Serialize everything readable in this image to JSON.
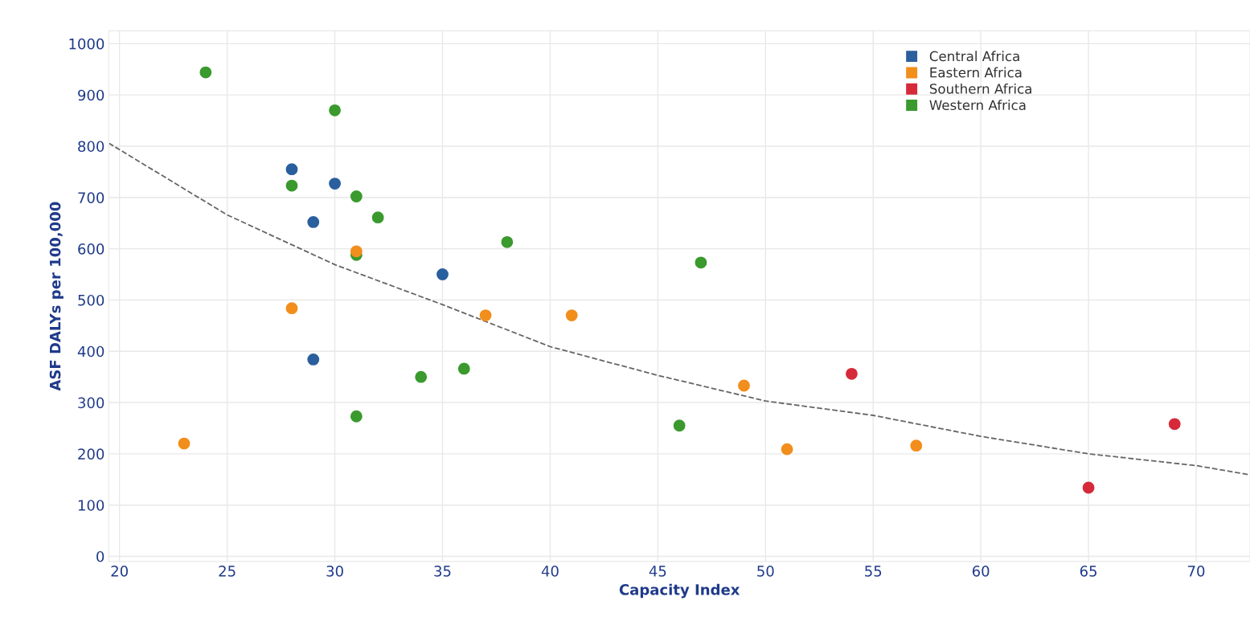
{
  "chart_data": {
    "type": "scatter",
    "xlabel": "Capacity Index",
    "ylabel": "ASF DALYs per 100,000",
    "xlim": [
      19.5,
      72.5
    ],
    "ylim": [
      -10,
      1025
    ],
    "xticks": [
      20,
      25,
      30,
      35,
      40,
      45,
      50,
      55,
      60,
      65,
      70
    ],
    "yticks": [
      0,
      100,
      200,
      300,
      400,
      500,
      600,
      700,
      800,
      900,
      1000
    ],
    "grid": true,
    "legend": "top right",
    "marker": "circle",
    "series": [
      {
        "name": "Central Africa",
        "color": "#2a5f9e",
        "x": [
          28,
          30,
          29,
          35,
          29
        ],
        "values": [
          755,
          727,
          652,
          550,
          384
        ]
      },
      {
        "name": "Eastern Africa",
        "color": "#f28e1c",
        "x": [
          23,
          28,
          31,
          37,
          41,
          49,
          51,
          57
        ],
        "values": [
          220,
          484,
          595,
          470,
          470,
          333,
          209,
          216
        ]
      },
      {
        "name": "Southern Africa",
        "color": "#d62a3a",
        "x": [
          54,
          65,
          69
        ],
        "values": [
          356,
          134,
          258
        ]
      },
      {
        "name": "Western Africa",
        "color": "#3a9a2e",
        "x": [
          24,
          30,
          28,
          31,
          32,
          31,
          38,
          47,
          34,
          36,
          31,
          46
        ],
        "values": [
          944,
          870,
          723,
          702,
          661,
          588,
          613,
          573,
          350,
          366,
          273,
          255
        ]
      },
      {
        "type": "line",
        "color": "#666666",
        "line_style": "dashed",
        "marker": "none",
        "x": [
          19.5,
          25,
          30,
          35,
          40,
          45,
          50,
          55,
          60,
          65,
          70,
          72.5
        ],
        "values": [
          806,
          666,
          569,
          491,
          409,
          353,
          303,
          275,
          234,
          200,
          177,
          159
        ]
      }
    ]
  }
}
